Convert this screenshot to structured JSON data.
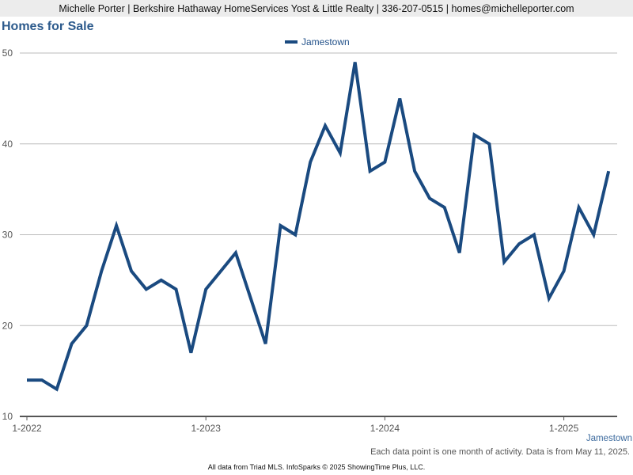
{
  "header": {
    "agent_info": "Michelle Porter | Berkshire Hathaway HomeServices Yost & Little Realty | 336-207-0515 | homes@michelleporter.com"
  },
  "chart_data": {
    "type": "line",
    "title": "Homes for Sale",
    "xlabel": "",
    "ylabel": "",
    "x_ticks": [
      "1-2022",
      "1-2023",
      "1-2024",
      "1-2025"
    ],
    "y_ticks": [
      10,
      20,
      30,
      40,
      50
    ],
    "ylim": [
      10,
      50
    ],
    "grid": true,
    "legend_position": "top-center",
    "series": [
      {
        "name": "Jamestown",
        "color": "#1a4a80",
        "x": [
          "2022-01",
          "2022-02",
          "2022-03",
          "2022-04",
          "2022-05",
          "2022-06",
          "2022-07",
          "2022-08",
          "2022-09",
          "2022-10",
          "2022-11",
          "2022-12",
          "2023-01",
          "2023-02",
          "2023-03",
          "2023-04",
          "2023-05",
          "2023-06",
          "2023-07",
          "2023-08",
          "2023-09",
          "2023-10",
          "2023-11",
          "2023-12",
          "2024-01",
          "2024-02",
          "2024-03",
          "2024-04",
          "2024-05",
          "2024-06",
          "2024-07",
          "2024-08",
          "2024-09",
          "2024-10",
          "2024-11",
          "2024-12",
          "2025-01",
          "2025-02",
          "2025-03",
          "2025-04"
        ],
        "values": [
          14,
          14,
          13,
          18,
          20,
          26,
          31,
          26,
          24,
          25,
          24,
          17,
          24,
          26,
          28,
          23,
          18,
          31,
          30,
          38,
          42,
          39,
          49,
          37,
          38,
          45,
          37,
          34,
          33,
          28,
          41,
          40,
          27,
          29,
          30,
          23,
          26,
          33,
          30,
          37
        ]
      }
    ],
    "corner_label": "Jamestown"
  },
  "notes": {
    "activity_note": "Each data point is one month of activity. Data is from May 11, 2025.",
    "source": "All data from Triad MLS. InfoSparks © 2025 ShowingTime Plus, LLC."
  }
}
